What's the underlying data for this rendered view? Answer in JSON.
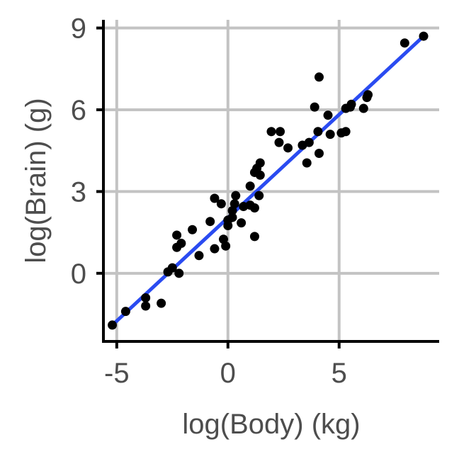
{
  "chart_data": {
    "type": "scatter",
    "title": "",
    "xlabel": "log(Body) (kg)",
    "ylabel": "log(Brain) (g)",
    "xlim": [
      -5.6,
      9.5
    ],
    "ylim": [
      -2.5,
      9.3
    ],
    "xticks": [
      -5,
      0,
      5
    ],
    "yticks": [
      0,
      3,
      6,
      9
    ],
    "xtick_labels": [
      "-5",
      "0",
      "5"
    ],
    "ytick_labels": [
      "0",
      "3",
      "6",
      "9"
    ],
    "grid": true,
    "colors": {
      "points": "#000000",
      "fit_line": "#2a4bf1",
      "grid": "#c3c3c3",
      "axis": "#000000",
      "text": "#4d4d4d"
    },
    "fit_line": {
      "x": [
        -5.2,
        8.8
      ],
      "y": [
        -1.9,
        8.7
      ]
    },
    "points": [
      {
        "x": -5.2,
        "y": -1.9
      },
      {
        "x": -4.6,
        "y": -1.4
      },
      {
        "x": -3.7,
        "y": -0.9
      },
      {
        "x": -3.7,
        "y": -1.2
      },
      {
        "x": -3.0,
        "y": -1.1
      },
      {
        "x": -2.7,
        "y": 0.05
      },
      {
        "x": -2.5,
        "y": 0.2
      },
      {
        "x": -2.2,
        "y": 0.0
      },
      {
        "x": -2.3,
        "y": 0.95
      },
      {
        "x": -2.1,
        "y": 1.1
      },
      {
        "x": -2.3,
        "y": 1.4
      },
      {
        "x": -1.6,
        "y": 1.6
      },
      {
        "x": -1.3,
        "y": 0.65
      },
      {
        "x": -0.8,
        "y": 1.9
      },
      {
        "x": -0.6,
        "y": 2.75
      },
      {
        "x": -0.6,
        "y": 0.9
      },
      {
        "x": -0.3,
        "y": 2.55
      },
      {
        "x": -0.2,
        "y": 1.25
      },
      {
        "x": -0.1,
        "y": 1.0
      },
      {
        "x": 0.0,
        "y": 1.75
      },
      {
        "x": 0.0,
        "y": 1.95
      },
      {
        "x": 0.2,
        "y": 2.05
      },
      {
        "x": 0.2,
        "y": 2.3
      },
      {
        "x": 0.3,
        "y": 2.55
      },
      {
        "x": 0.35,
        "y": 2.85
      },
      {
        "x": 0.6,
        "y": 1.85
      },
      {
        "x": 0.7,
        "y": 2.45
      },
      {
        "x": 1.0,
        "y": 2.5
      },
      {
        "x": 1.0,
        "y": 3.2
      },
      {
        "x": 1.2,
        "y": 1.35
      },
      {
        "x": 1.2,
        "y": 2.4
      },
      {
        "x": 1.2,
        "y": 3.7
      },
      {
        "x": 1.3,
        "y": 3.85
      },
      {
        "x": 1.4,
        "y": 2.85
      },
      {
        "x": 1.45,
        "y": 3.6
      },
      {
        "x": 1.45,
        "y": 4.05
      },
      {
        "x": 1.95,
        "y": 5.2
      },
      {
        "x": 2.3,
        "y": 4.8
      },
      {
        "x": 2.35,
        "y": 5.2
      },
      {
        "x": 2.7,
        "y": 4.6
      },
      {
        "x": 3.35,
        "y": 4.7
      },
      {
        "x": 3.55,
        "y": 4.05
      },
      {
        "x": 3.65,
        "y": 4.8
      },
      {
        "x": 3.9,
        "y": 6.1
      },
      {
        "x": 4.05,
        "y": 5.2
      },
      {
        "x": 4.1,
        "y": 4.4
      },
      {
        "x": 4.1,
        "y": 7.2
      },
      {
        "x": 4.5,
        "y": 5.8
      },
      {
        "x": 4.6,
        "y": 5.1
      },
      {
        "x": 5.1,
        "y": 5.15
      },
      {
        "x": 5.3,
        "y": 5.2
      },
      {
        "x": 5.3,
        "y": 6.05
      },
      {
        "x": 5.5,
        "y": 6.1
      },
      {
        "x": 5.55,
        "y": 6.2
      },
      {
        "x": 6.1,
        "y": 6.05
      },
      {
        "x": 6.25,
        "y": 6.45
      },
      {
        "x": 6.3,
        "y": 6.55
      },
      {
        "x": 7.95,
        "y": 8.45
      },
      {
        "x": 8.8,
        "y": 8.7
      }
    ]
  }
}
